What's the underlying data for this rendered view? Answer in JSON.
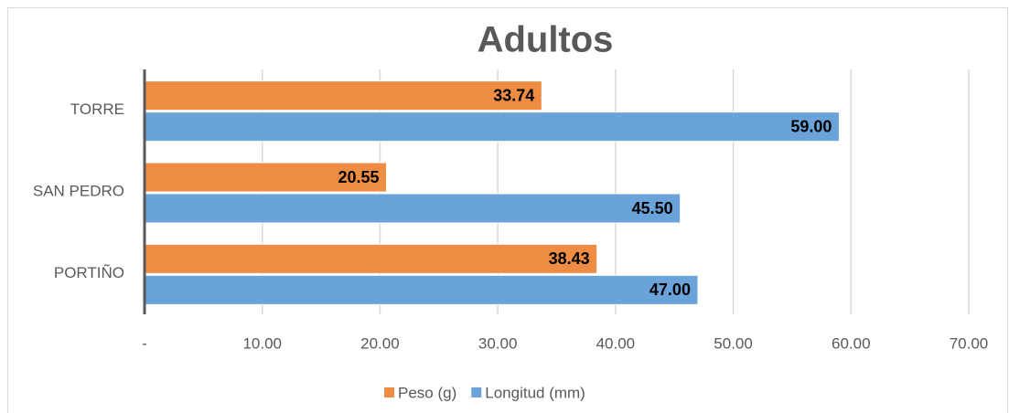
{
  "chart_data": {
    "type": "hbar",
    "title": "Adultos",
    "categories": [
      "TORRE",
      "SAN PEDRO",
      "PORTIÑO"
    ],
    "series": [
      {
        "name": "Peso (g)",
        "color": "#ed8c42",
        "values": [
          33.74,
          20.55,
          38.43
        ],
        "value_labels": [
          "33.74",
          "20.55",
          "38.43"
        ]
      },
      {
        "name": "Longitud (mm)",
        "color": "#6aa3d9",
        "values": [
          59,
          45.5,
          47
        ],
        "value_labels": [
          "59.00",
          "45.50",
          "47.00"
        ]
      }
    ],
    "xlim": [
      0,
      70
    ],
    "xticks": [
      {
        "value": 0,
        "label": "-"
      },
      {
        "value": 10,
        "label": "10.00"
      },
      {
        "value": 20,
        "label": "20.00"
      },
      {
        "value": 30,
        "label": "30.00"
      },
      {
        "value": 40,
        "label": "40.00"
      },
      {
        "value": 50,
        "label": "50.00"
      },
      {
        "value": 60,
        "label": "60.00"
      },
      {
        "value": 70,
        "label": "70.00"
      }
    ],
    "grid": true,
    "legend": "bottom"
  }
}
